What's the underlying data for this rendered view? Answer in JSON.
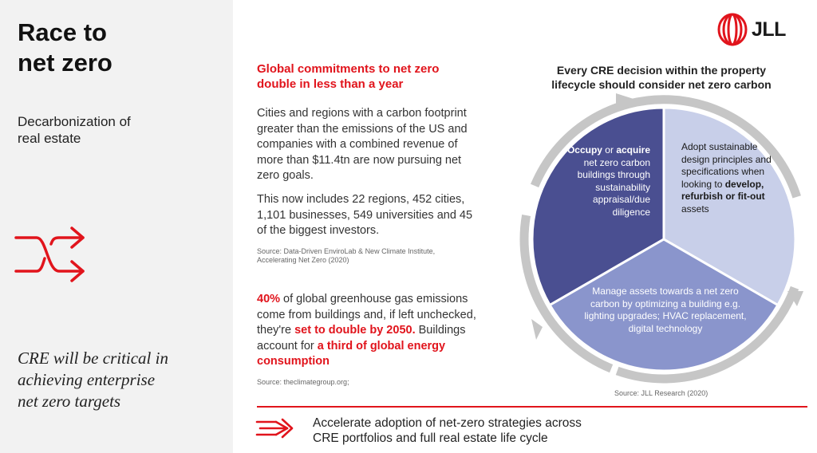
{
  "left_panel": {
    "title": "Race to\nnet zero",
    "subtitle": "Decarbonization of\nreal estate",
    "icon": "shuffle-arrows-icon",
    "quote": "CRE will be critical in\nachieving enterprise\nnet zero targets"
  },
  "logo": {
    "text": "JLL",
    "icon": "jll-logo-icon"
  },
  "middle": {
    "headline": "Global commitments to net zero\ndouble in less than a year",
    "para1": "Cities and regions with a carbon footprint greater than the emissions of the US and companies with a combined revenue of more than $11.4tn are now pursuing net zero goals.",
    "para2": "This now includes 22 regions, 452 cities, 1,101 businesses, 549 universities and 45 of the biggest investors.",
    "source1": "Source: Data-Driven EnviroLab & New Climate Institute, Accelerating Net Zero (2020)",
    "stat": {
      "highlight1": "40%",
      "text1": " of global greenhouse gas emissions come from buildings and, if left unchecked, they're ",
      "highlight2": "set to double by 2050.",
      "text2": " Buildings account for ",
      "highlight3": "a third of global energy consumption"
    },
    "source2": "Source: theclimategroup.org;"
  },
  "diagram": {
    "title": "Every CRE decision within the property\nlifecycle should consider net zero carbon",
    "segments": {
      "occupy": {
        "bold1": "Occupy",
        "t1": " or ",
        "bold2": "acquire",
        "t2": " net zero carbon buildings through sustainability appraisal/due diligence"
      },
      "adopt": {
        "t1": "Adopt sustainable design principles and specifications when looking to ",
        "bold": "develop, refurbish or fit-out",
        "t2": " assets"
      },
      "manage": {
        "text": "Manage assets towards a net zero carbon by optimizing a building e.g. lighting upgrades; HVAC replacement, digital technology"
      }
    },
    "source": "Source: JLL Research (2020)",
    "colors": {
      "dark": "#4a4f91",
      "light": "#c8cfe9",
      "mid": "#8a95cc",
      "ring": "#c6c6c6"
    }
  },
  "bottom": {
    "icon": "triple-arrow-icon",
    "text": "Accelerate adoption of net-zero strategies across\nCRE portfolios and full real estate life cycle"
  },
  "colors": {
    "accent_red": "#e1141c",
    "panel_bg": "#f2f2f2"
  }
}
